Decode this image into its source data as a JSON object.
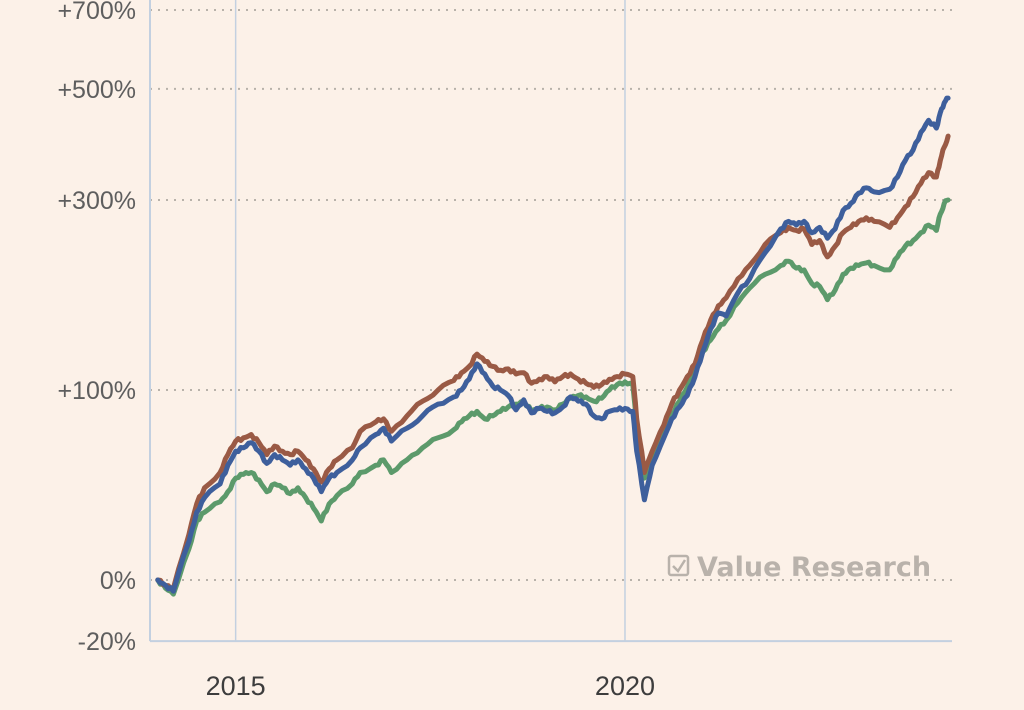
{
  "colors": {
    "background": "#fcf1e8",
    "blue_series": "#3e5f9c",
    "brown_series": "#9a5a45",
    "green_series": "#5c9a6b",
    "grid": "#b8b2aa",
    "axis": "#c3d0e0"
  },
  "watermark": {
    "icon": "checkbox-icon",
    "text": "Value Research"
  },
  "chart_data": {
    "type": "line",
    "title": "",
    "xlabel": "",
    "ylabel": "",
    "y_scale": "log(1 + return)",
    "y_ticks": [
      {
        "value": 700,
        "label": "+700%"
      },
      {
        "value": 500,
        "label": "+500%"
      },
      {
        "value": 300,
        "label": "+300%"
      },
      {
        "value": 100,
        "label": "+100%"
      },
      {
        "value": 0,
        "label": "0%"
      },
      {
        "value": -20,
        "label": "-20%"
      }
    ],
    "ylim": [
      -20,
      700
    ],
    "x_ticks": [
      {
        "value": 2015.0,
        "label": "2015"
      },
      {
        "value": 2020.0,
        "label": "2020"
      }
    ],
    "xlim": [
      2013.9,
      2024.2
    ],
    "grid": "horizontal dotted",
    "series": [
      {
        "color": "#3e5f9c",
        "points": [
          [
            2014.0,
            0
          ],
          [
            2014.1,
            -2
          ],
          [
            2014.2,
            -4
          ],
          [
            2014.4,
            15
          ],
          [
            2014.5,
            28
          ],
          [
            2014.6,
            35
          ],
          [
            2014.8,
            42
          ],
          [
            2014.9,
            52
          ],
          [
            2015.0,
            60
          ],
          [
            2015.1,
            62
          ],
          [
            2015.2,
            65
          ],
          [
            2015.3,
            60
          ],
          [
            2015.4,
            53
          ],
          [
            2015.5,
            58
          ],
          [
            2015.6,
            55
          ],
          [
            2015.7,
            52
          ],
          [
            2015.8,
            55
          ],
          [
            2015.9,
            50
          ],
          [
            2016.0,
            45
          ],
          [
            2016.1,
            38
          ],
          [
            2016.2,
            45
          ],
          [
            2016.3,
            48
          ],
          [
            2016.5,
            55
          ],
          [
            2016.6,
            62
          ],
          [
            2016.8,
            70
          ],
          [
            2016.9,
            74
          ],
          [
            2017.0,
            66
          ],
          [
            2017.2,
            74
          ],
          [
            2017.4,
            82
          ],
          [
            2017.6,
            90
          ],
          [
            2017.8,
            95
          ],
          [
            2017.9,
            100
          ],
          [
            2018.0,
            108
          ],
          [
            2018.1,
            120
          ],
          [
            2018.2,
            112
          ],
          [
            2018.3,
            103
          ],
          [
            2018.4,
            100
          ],
          [
            2018.5,
            96
          ],
          [
            2018.6,
            86
          ],
          [
            2018.7,
            93
          ],
          [
            2018.8,
            84
          ],
          [
            2018.9,
            87
          ],
          [
            2019.0,
            85
          ],
          [
            2019.1,
            84
          ],
          [
            2019.2,
            88
          ],
          [
            2019.3,
            95
          ],
          [
            2019.4,
            92
          ],
          [
            2019.5,
            90
          ],
          [
            2019.6,
            82
          ],
          [
            2019.7,
            80
          ],
          [
            2019.8,
            85
          ],
          [
            2019.9,
            86
          ],
          [
            2020.0,
            87
          ],
          [
            2020.1,
            85
          ],
          [
            2020.15,
            60
          ],
          [
            2020.25,
            34
          ],
          [
            2020.35,
            52
          ],
          [
            2020.5,
            68
          ],
          [
            2020.6,
            80
          ],
          [
            2020.7,
            88
          ],
          [
            2020.8,
            96
          ],
          [
            2020.9,
            110
          ],
          [
            2021.0,
            130
          ],
          [
            2021.1,
            150
          ],
          [
            2021.2,
            165
          ],
          [
            2021.3,
            162
          ],
          [
            2021.45,
            185
          ],
          [
            2021.6,
            200
          ],
          [
            2021.8,
            230
          ],
          [
            2022.0,
            260
          ],
          [
            2022.1,
            270
          ],
          [
            2022.2,
            265
          ],
          [
            2022.3,
            270
          ],
          [
            2022.4,
            255
          ],
          [
            2022.5,
            262
          ],
          [
            2022.6,
            248
          ],
          [
            2022.7,
            260
          ],
          [
            2022.8,
            285
          ],
          [
            2022.9,
            295
          ],
          [
            2023.0,
            310
          ],
          [
            2023.1,
            318
          ],
          [
            2023.2,
            312
          ],
          [
            2023.4,
            316
          ],
          [
            2023.5,
            335
          ],
          [
            2023.6,
            362
          ],
          [
            2023.7,
            380
          ],
          [
            2023.8,
            412
          ],
          [
            2023.9,
            435
          ],
          [
            2024.0,
            420
          ],
          [
            2024.05,
            450
          ],
          [
            2024.1,
            470
          ],
          [
            2024.15,
            480
          ]
        ]
      },
      {
        "color": "#9a5a45",
        "points": [
          [
            2014.0,
            0
          ],
          [
            2014.1,
            -2
          ],
          [
            2014.2,
            -3
          ],
          [
            2014.4,
            18
          ],
          [
            2014.5,
            32
          ],
          [
            2014.6,
            40
          ],
          [
            2014.8,
            48
          ],
          [
            2014.9,
            58
          ],
          [
            2015.0,
            66
          ],
          [
            2015.1,
            68
          ],
          [
            2015.2,
            70
          ],
          [
            2015.3,
            65
          ],
          [
            2015.4,
            58
          ],
          [
            2015.5,
            63
          ],
          [
            2015.6,
            60
          ],
          [
            2015.7,
            58
          ],
          [
            2015.8,
            60
          ],
          [
            2015.9,
            55
          ],
          [
            2016.0,
            50
          ],
          [
            2016.1,
            43
          ],
          [
            2016.2,
            50
          ],
          [
            2016.3,
            55
          ],
          [
            2016.5,
            62
          ],
          [
            2016.6,
            72
          ],
          [
            2016.8,
            78
          ],
          [
            2016.9,
            80
          ],
          [
            2017.0,
            72
          ],
          [
            2017.2,
            82
          ],
          [
            2017.4,
            92
          ],
          [
            2017.6,
            100
          ],
          [
            2017.8,
            107
          ],
          [
            2017.9,
            113
          ],
          [
            2018.0,
            118
          ],
          [
            2018.1,
            128
          ],
          [
            2018.2,
            122
          ],
          [
            2018.3,
            118
          ],
          [
            2018.4,
            115
          ],
          [
            2018.5,
            116
          ],
          [
            2018.6,
            112
          ],
          [
            2018.7,
            113
          ],
          [
            2018.8,
            105
          ],
          [
            2018.9,
            108
          ],
          [
            2019.0,
            110
          ],
          [
            2019.1,
            106
          ],
          [
            2019.2,
            110
          ],
          [
            2019.3,
            112
          ],
          [
            2019.4,
            108
          ],
          [
            2019.5,
            105
          ],
          [
            2019.6,
            102
          ],
          [
            2019.7,
            104
          ],
          [
            2019.8,
            108
          ],
          [
            2019.9,
            110
          ],
          [
            2020.0,
            112
          ],
          [
            2020.1,
            110
          ],
          [
            2020.15,
            80
          ],
          [
            2020.25,
            48
          ],
          [
            2020.35,
            60
          ],
          [
            2020.5,
            76
          ],
          [
            2020.6,
            90
          ],
          [
            2020.7,
            100
          ],
          [
            2020.8,
            110
          ],
          [
            2020.9,
            120
          ],
          [
            2021.0,
            140
          ],
          [
            2021.1,
            158
          ],
          [
            2021.2,
            172
          ],
          [
            2021.3,
            180
          ],
          [
            2021.45,
            200
          ],
          [
            2021.6,
            215
          ],
          [
            2021.8,
            240
          ],
          [
            2022.0,
            255
          ],
          [
            2022.1,
            262
          ],
          [
            2022.2,
            258
          ],
          [
            2022.3,
            260
          ],
          [
            2022.4,
            240
          ],
          [
            2022.5,
            245
          ],
          [
            2022.6,
            225
          ],
          [
            2022.7,
            238
          ],
          [
            2022.8,
            255
          ],
          [
            2022.9,
            262
          ],
          [
            2023.0,
            270
          ],
          [
            2023.1,
            275
          ],
          [
            2023.2,
            270
          ],
          [
            2023.4,
            262
          ],
          [
            2023.5,
            275
          ],
          [
            2023.6,
            290
          ],
          [
            2023.7,
            305
          ],
          [
            2023.8,
            325
          ],
          [
            2023.9,
            342
          ],
          [
            2024.0,
            335
          ],
          [
            2024.05,
            362
          ],
          [
            2024.1,
            385
          ],
          [
            2024.15,
            405
          ]
        ]
      },
      {
        "color": "#5c9a6b",
        "points": [
          [
            2014.0,
            0
          ],
          [
            2014.1,
            -3
          ],
          [
            2014.2,
            -5
          ],
          [
            2014.4,
            12
          ],
          [
            2014.5,
            24
          ],
          [
            2014.6,
            28
          ],
          [
            2014.8,
            33
          ],
          [
            2014.9,
            38
          ],
          [
            2015.0,
            45
          ],
          [
            2015.1,
            47
          ],
          [
            2015.2,
            48
          ],
          [
            2015.3,
            44
          ],
          [
            2015.4,
            38
          ],
          [
            2015.5,
            42
          ],
          [
            2015.6,
            40
          ],
          [
            2015.7,
            37
          ],
          [
            2015.8,
            40
          ],
          [
            2015.9,
            35
          ],
          [
            2016.0,
            30
          ],
          [
            2016.1,
            24
          ],
          [
            2016.2,
            32
          ],
          [
            2016.3,
            36
          ],
          [
            2016.5,
            42
          ],
          [
            2016.6,
            48
          ],
          [
            2016.8,
            52
          ],
          [
            2016.9,
            55
          ],
          [
            2017.0,
            48
          ],
          [
            2017.2,
            55
          ],
          [
            2017.4,
            62
          ],
          [
            2017.6,
            68
          ],
          [
            2017.8,
            73
          ],
          [
            2017.9,
            78
          ],
          [
            2018.0,
            82
          ],
          [
            2018.1,
            85
          ],
          [
            2018.2,
            80
          ],
          [
            2018.3,
            82
          ],
          [
            2018.4,
            85
          ],
          [
            2018.5,
            88
          ],
          [
            2018.6,
            90
          ],
          [
            2018.7,
            92
          ],
          [
            2018.8,
            85
          ],
          [
            2018.9,
            87
          ],
          [
            2019.0,
            88
          ],
          [
            2019.1,
            86
          ],
          [
            2019.2,
            90
          ],
          [
            2019.3,
            94
          ],
          [
            2019.4,
            96
          ],
          [
            2019.5,
            95
          ],
          [
            2019.6,
            92
          ],
          [
            2019.7,
            94
          ],
          [
            2019.8,
            100
          ],
          [
            2019.9,
            104
          ],
          [
            2020.0,
            106
          ],
          [
            2020.1,
            104
          ],
          [
            2020.15,
            78
          ],
          [
            2020.25,
            45
          ],
          [
            2020.35,
            58
          ],
          [
            2020.5,
            70
          ],
          [
            2020.6,
            82
          ],
          [
            2020.7,
            92
          ],
          [
            2020.8,
            102
          ],
          [
            2020.9,
            115
          ],
          [
            2021.0,
            130
          ],
          [
            2021.1,
            140
          ],
          [
            2021.2,
            150
          ],
          [
            2021.3,
            158
          ],
          [
            2021.45,
            175
          ],
          [
            2021.6,
            190
          ],
          [
            2021.8,
            205
          ],
          [
            2022.0,
            215
          ],
          [
            2022.1,
            220
          ],
          [
            2022.2,
            212
          ],
          [
            2022.3,
            210
          ],
          [
            2022.4,
            195
          ],
          [
            2022.5,
            192
          ],
          [
            2022.6,
            178
          ],
          [
            2022.7,
            188
          ],
          [
            2022.8,
            205
          ],
          [
            2022.9,
            212
          ],
          [
            2023.0,
            215
          ],
          [
            2023.1,
            218
          ],
          [
            2023.2,
            215
          ],
          [
            2023.4,
            210
          ],
          [
            2023.5,
            225
          ],
          [
            2023.6,
            238
          ],
          [
            2023.7,
            245
          ],
          [
            2023.8,
            255
          ],
          [
            2023.9,
            265
          ],
          [
            2024.0,
            258
          ],
          [
            2024.05,
            280
          ],
          [
            2024.1,
            295
          ],
          [
            2024.15,
            300
          ]
        ]
      }
    ]
  }
}
